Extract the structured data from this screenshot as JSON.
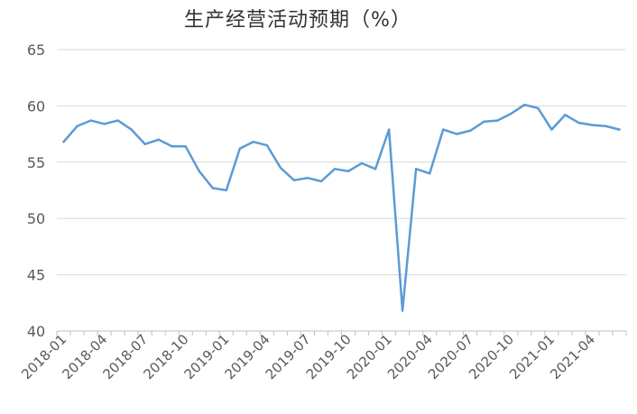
{
  "chart_data": {
    "type": "line",
    "title": "生产经营活动预期（%）",
    "xlabel": "",
    "ylabel": "",
    "ylim": [
      40,
      65
    ],
    "yticks": [
      "40",
      "45",
      "50",
      "55",
      "60",
      "65"
    ],
    "xticks": [
      "2018-01",
      "2018-04",
      "2018-07",
      "2018-10",
      "2019-01",
      "2019-04",
      "2019-07",
      "2019-10",
      "2020-01",
      "2020-04",
      "2020-07",
      "2020-10",
      "2021-01",
      "2021-04"
    ],
    "grid": "horizontal",
    "legend": "none",
    "x": [
      "2018-01",
      "2018-02",
      "2018-03",
      "2018-04",
      "2018-05",
      "2018-06",
      "2018-07",
      "2018-08",
      "2018-09",
      "2018-10",
      "2018-11",
      "2018-12",
      "2019-01",
      "2019-02",
      "2019-03",
      "2019-04",
      "2019-05",
      "2019-06",
      "2019-07",
      "2019-08",
      "2019-09",
      "2019-10",
      "2019-11",
      "2019-12",
      "2020-01",
      "2020-02",
      "2020-03",
      "2020-04",
      "2020-05",
      "2020-06",
      "2020-07",
      "2020-08",
      "2020-09",
      "2020-10",
      "2020-11",
      "2020-12",
      "2021-01",
      "2021-02",
      "2021-03",
      "2021-04",
      "2021-05",
      "2021-06"
    ],
    "series": [
      {
        "color": "#5b9bd5",
        "values": [
          56.8,
          58.2,
          58.7,
          58.4,
          58.7,
          57.9,
          56.6,
          57.0,
          56.4,
          56.4,
          54.2,
          52.7,
          52.5,
          56.2,
          56.8,
          56.5,
          54.5,
          53.4,
          53.6,
          53.3,
          54.4,
          54.2,
          54.9,
          54.4,
          57.9,
          41.8,
          54.4,
          54.0,
          57.9,
          57.5,
          57.8,
          58.6,
          58.7,
          59.3,
          60.1,
          59.8,
          57.9,
          59.2,
          58.5,
          58.3,
          58.2,
          57.9
        ]
      }
    ]
  }
}
